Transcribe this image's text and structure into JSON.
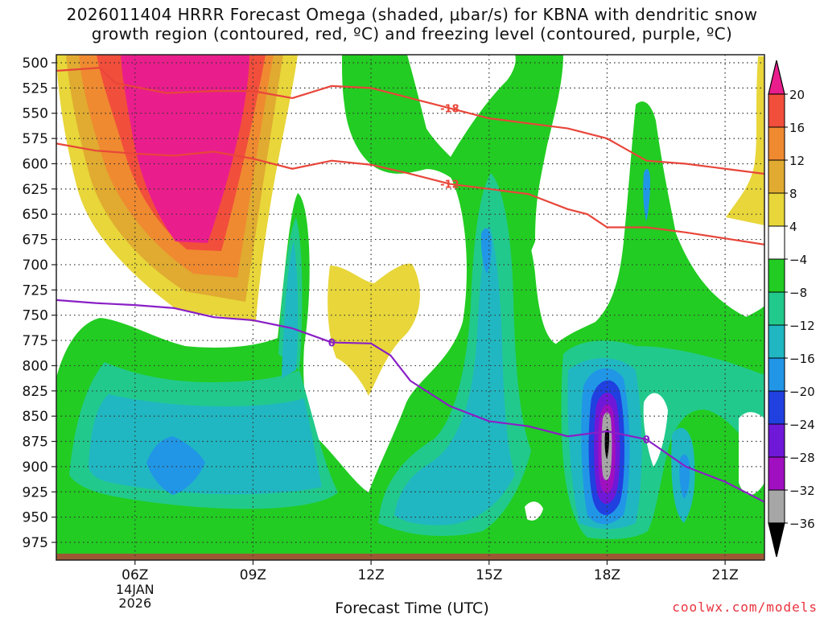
{
  "title_line1": "2026011404 HRRR Forecast Omega (shaded, μbar/s) for KBNA with dendritic snow",
  "title_line2": "growth region (contoured, red, ºC) and freezing level (contoured, purple, ºC)",
  "credit": "coolwx.com/models",
  "colors": {
    "grid": "#333333",
    "dgz_contour": "#e8463a",
    "freezing_contour": "#8a1fc6",
    "ground": "#9c5a33",
    "fill_pos_4": "#e8d63a",
    "fill_pos_8": "#e0ab30",
    "fill_pos_12": "#ef8a30",
    "fill_pos_16": "#f24e3c",
    "fill_pos_20": "#e91e8c",
    "fill_neg_4": "#22cc22",
    "fill_neg_8": "#22c98c",
    "fill_neg_12": "#20b7c2",
    "fill_neg_16": "#2196e6",
    "fill_neg_20": "#2040e0",
    "fill_neg_24": "#7018d8",
    "fill_neg_28": "#a010c0",
    "fill_neg_32": "#a6a6a6",
    "fill_neg_36": "#000000"
  },
  "chart_data": {
    "type": "heatmap",
    "title": "2026011404 HRRR Forecast Omega (shaded, μbar/s) for KBNA with dendritic snow growth region (contoured, red, ºC) and freezing level (contoured, purple, ºC)",
    "xlabel": "Forecast Time (UTC)",
    "ylabel": "",
    "x_range_hours": [
      4.0,
      22.0
    ],
    "x_ticks": [
      {
        "hour": 6,
        "label": "06Z",
        "sub": [
          "14JAN",
          "2026"
        ]
      },
      {
        "hour": 9,
        "label": "09Z"
      },
      {
        "hour": 12,
        "label": "12Z"
      },
      {
        "hour": 15,
        "label": "15Z"
      },
      {
        "hour": 18,
        "label": "18Z"
      },
      {
        "hour": 21,
        "label": "21Z"
      }
    ],
    "y_range_mb": [
      500,
      987
    ],
    "y_ticks": [
      500,
      525,
      550,
      575,
      600,
      625,
      650,
      675,
      700,
      725,
      750,
      775,
      800,
      825,
      850,
      875,
      900,
      925,
      950,
      975
    ],
    "grid": true,
    "colorbar": {
      "levels": [
        -36,
        -32,
        -28,
        -24,
        -20,
        -16,
        -12,
        -8,
        -4,
        4,
        8,
        12,
        16,
        20
      ],
      "labels": [
        "20",
        "16",
        "12",
        "8",
        "4",
        "−4",
        "−8",
        "−12",
        "−16",
        "−20",
        "−24",
        "−28",
        "−32",
        "−36"
      ]
    },
    "omega_features": [
      {
        "name": "upward-max",
        "hour": 18.0,
        "mb": 848,
        "value": -34
      },
      {
        "name": "downward-max",
        "hour": 7.3,
        "mb": 560,
        "value": 22
      },
      {
        "name": "lower-upward",
        "hour": 5.5,
        "mb": 870,
        "value": -16
      }
    ],
    "contours": [
      {
        "series": "dgz",
        "label": "-18",
        "color_key": "dgz_contour",
        "points": [
          [
            4.0,
            508
          ],
          [
            5.1,
            505
          ],
          [
            5.5,
            520
          ],
          [
            6.8,
            530
          ],
          [
            8.0,
            528
          ],
          [
            9.0,
            528
          ],
          [
            10.0,
            535
          ],
          [
            11.0,
            523
          ],
          [
            12.0,
            525
          ],
          [
            13.0,
            535
          ],
          [
            14.0,
            545
          ],
          [
            15.0,
            555
          ],
          [
            16.0,
            560
          ],
          [
            17.0,
            565
          ],
          [
            18.0,
            575
          ],
          [
            19.0,
            597
          ],
          [
            20.0,
            600
          ],
          [
            21.0,
            605
          ],
          [
            22.0,
            610
          ]
        ]
      },
      {
        "series": "dgz",
        "label": "-12",
        "color_key": "dgz_contour",
        "points": [
          [
            4.0,
            580
          ],
          [
            5.0,
            587
          ],
          [
            6.0,
            590
          ],
          [
            7.0,
            592
          ],
          [
            8.0,
            588
          ],
          [
            9.0,
            595
          ],
          [
            10.0,
            605
          ],
          [
            11.0,
            597
          ],
          [
            12.0,
            601
          ],
          [
            13.0,
            610
          ],
          [
            14.0,
            620
          ],
          [
            15.0,
            625
          ],
          [
            16.0,
            630
          ],
          [
            17.0,
            645
          ],
          [
            17.5,
            650
          ],
          [
            18.0,
            663
          ],
          [
            19.0,
            663
          ],
          [
            20.0,
            668
          ],
          [
            21.0,
            674
          ],
          [
            22.0,
            680
          ]
        ]
      },
      {
        "series": "freezing",
        "label": "0",
        "color_key": "freezing_contour",
        "points": [
          [
            4.0,
            735
          ],
          [
            5.0,
            738
          ],
          [
            6.0,
            740
          ],
          [
            7.0,
            743
          ],
          [
            8.0,
            752
          ],
          [
            9.0,
            755
          ],
          [
            10.0,
            763
          ],
          [
            11.0,
            777
          ],
          [
            12.0,
            778
          ],
          [
            12.5,
            790
          ],
          [
            13.0,
            815
          ],
          [
            14.0,
            840
          ],
          [
            15.0,
            855
          ],
          [
            16.0,
            860
          ],
          [
            17.0,
            870
          ],
          [
            18.0,
            865
          ],
          [
            19.0,
            873
          ],
          [
            20.0,
            900
          ],
          [
            21.0,
            915
          ],
          [
            22.0,
            935
          ]
        ]
      }
    ]
  }
}
